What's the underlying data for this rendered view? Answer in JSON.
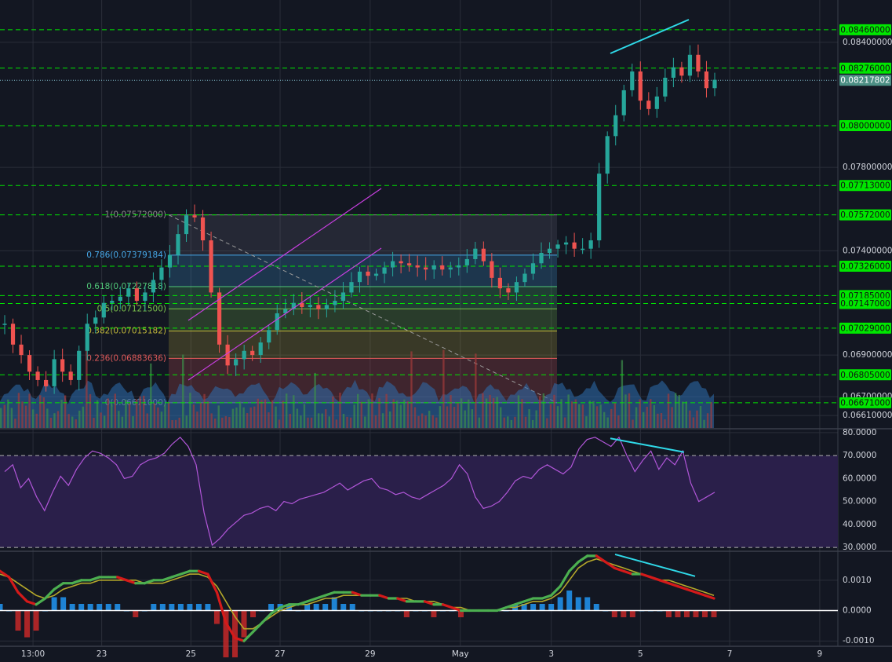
{
  "chart_data": [
    {
      "type": "candlestick",
      "panel": "price",
      "y_axis_ticks": [
        "0.08400000",
        "0.07800000",
        "0.07400000",
        "0.06900000",
        "0.06700000",
        "0.06610000"
      ],
      "ylim": [
        0.0655,
        0.0852
      ],
      "horizontal_levels": [
        {
          "value": 0.0846,
          "label": "0.08460000"
        },
        {
          "value": 0.08276,
          "label": "0.08276000"
        },
        {
          "value": 0.08,
          "label": "0.08000000"
        },
        {
          "value": 0.07713,
          "label": "0.07713000"
        },
        {
          "value": 0.07572,
          "label": "0.07572000"
        },
        {
          "value": 0.07326,
          "label": "0.07326000"
        },
        {
          "value": 0.07185,
          "label": "0.07185000"
        },
        {
          "value": 0.07147,
          "label": "0.07147000"
        },
        {
          "value": 0.07029,
          "label": "0.07029000"
        },
        {
          "value": 0.06805,
          "label": "0.06805000"
        },
        {
          "value": 0.06671,
          "label": "0.06671000"
        }
      ],
      "current_price": {
        "value": 0.08217802,
        "label": "0.08217802"
      },
      "fib_levels": [
        {
          "ratio": "1",
          "value": 0.07572,
          "label": "1(0.07572000)"
        },
        {
          "ratio": "0.786",
          "value": 0.07379184,
          "label": "0.786(0.07379184)"
        },
        {
          "ratio": "0.618",
          "value": 0.07227818,
          "label": "0.618(0.07227818)"
        },
        {
          "ratio": "0.5",
          "value": 0.071215,
          "label": "0.5(0.07121500)"
        },
        {
          "ratio": "0.382",
          "value": 0.07015182,
          "label": "0.382(0.07015182)"
        },
        {
          "ratio": "0.236",
          "value": 0.06883636,
          "label": "0.236(0.06883636)"
        },
        {
          "ratio": "0",
          "value": 0.06671,
          "label": "0(0.06671000)"
        }
      ],
      "price_path": [
        0.0705,
        0.0695,
        0.069,
        0.0682,
        0.0678,
        0.0675,
        0.0688,
        0.0682,
        0.0678,
        0.0692,
        0.0705,
        0.0708,
        0.0715,
        0.0716,
        0.0718,
        0.0722,
        0.0716,
        0.072,
        0.0726,
        0.0732,
        0.0738,
        0.0748,
        0.0757,
        0.0756,
        0.0745,
        0.072,
        0.0695,
        0.0685,
        0.0688,
        0.0692,
        0.069,
        0.0696,
        0.0702,
        0.071,
        0.0712,
        0.0715,
        0.0713,
        0.0714,
        0.0712,
        0.0714,
        0.0716,
        0.072,
        0.0725,
        0.073,
        0.0728,
        0.0729,
        0.0732,
        0.0735,
        0.0734,
        0.0733,
        0.0732,
        0.0731,
        0.0733,
        0.0731,
        0.0732,
        0.0733,
        0.0736,
        0.0741,
        0.0735,
        0.0727,
        0.0722,
        0.072,
        0.0725,
        0.0729,
        0.0734,
        0.0739,
        0.0741,
        0.0743,
        0.0744,
        0.0741,
        0.0741,
        0.0745,
        0.0777,
        0.0795,
        0.0805,
        0.0817,
        0.0826,
        0.0812,
        0.0808,
        0.0814,
        0.0823,
        0.0828,
        0.0824,
        0.0834,
        0.0826,
        0.0818,
        0.0822
      ],
      "volume_profile": "overlay"
    },
    {
      "type": "line",
      "panel": "rsi",
      "y_axis_ticks": [
        "80.0000",
        "70.0000",
        "60.0000",
        "50.0000",
        "40.0000",
        "30.0000"
      ],
      "ylim": [
        29,
        81
      ],
      "bands": [
        70,
        30
      ],
      "values": [
        63,
        66,
        56,
        60,
        52,
        46,
        54,
        61,
        57,
        64,
        69,
        72,
        71,
        69,
        66,
        60,
        61,
        66,
        68,
        69,
        71,
        75,
        78,
        74,
        66,
        45,
        31,
        34,
        38,
        41,
        44,
        45,
        47,
        48,
        46,
        50,
        49,
        51,
        52,
        53,
        54,
        56,
        58,
        55,
        57,
        59,
        60,
        56,
        55,
        53,
        54,
        52,
        51,
        53,
        55,
        57,
        60,
        66,
        62,
        52,
        47,
        48,
        50,
        54,
        59,
        61,
        60,
        64,
        66,
        64,
        62,
        65,
        73,
        77,
        78,
        76,
        74,
        78,
        70,
        63,
        68,
        72,
        64,
        69,
        66,
        72,
        58,
        50,
        52,
        54
      ]
    },
    {
      "type": "macd",
      "panel": "macd",
      "y_axis_ticks": [
        "0.0010",
        "0.0000",
        "-0.0010"
      ],
      "ylim": [
        -0.00115,
        0.0019
      ],
      "macd": [
        0.0013,
        0.0011,
        0.0006,
        0.0003,
        0.0002,
        0.0004,
        0.0007,
        0.0009,
        0.0009,
        0.001,
        0.001,
        0.0011,
        0.0011,
        0.0011,
        0.001,
        0.0009,
        0.0009,
        0.001,
        0.001,
        0.0011,
        0.0012,
        0.0013,
        0.0013,
        0.0012,
        0.0006,
        -0.0004,
        -0.0009,
        -0.001,
        -0.0007,
        -0.0004,
        -0.0001,
        0.0001,
        0.0002,
        0.0002,
        0.0003,
        0.0004,
        0.0005,
        0.0006,
        0.0006,
        0.0006,
        0.0005,
        0.0005,
        0.0005,
        0.0004,
        0.0004,
        0.0003,
        0.0003,
        0.0003,
        0.0002,
        0.0002,
        0.0001,
        0.0,
        0.0,
        0.0,
        0.0,
        0.0,
        0.0001,
        0.0002,
        0.0003,
        0.0004,
        0.0004,
        0.0005,
        0.0008,
        0.0013,
        0.0016,
        0.0018,
        0.0018,
        0.0016,
        0.0014,
        0.0013,
        0.0012,
        0.0012,
        0.0011,
        0.001,
        0.0009,
        0.0008,
        0.0007,
        0.0006,
        0.0005,
        0.0004
      ],
      "signal": [
        0.0012,
        0.0011,
        0.0009,
        0.0007,
        0.0005,
        0.0004,
        0.0005,
        0.0007,
        0.0008,
        0.0009,
        0.0009,
        0.001,
        0.001,
        0.001,
        0.001,
        0.001,
        0.0009,
        0.0009,
        0.0009,
        0.001,
        0.0011,
        0.0012,
        0.0012,
        0.0011,
        0.0008,
        0.0003,
        -0.0002,
        -0.0006,
        -0.0006,
        -0.0004,
        -0.0002,
        0.0,
        0.0001,
        0.0002,
        0.0002,
        0.0003,
        0.0004,
        0.0004,
        0.0005,
        0.0005,
        0.0005,
        0.0005,
        0.0005,
        0.0004,
        0.0004,
        0.0004,
        0.0003,
        0.0003,
        0.0003,
        0.0002,
        0.0001,
        0.0001,
        0.0,
        0.0,
        0.0,
        0.0,
        0.0001,
        0.0001,
        0.0002,
        0.0003,
        0.0003,
        0.0004,
        0.0006,
        0.001,
        0.0014,
        0.0016,
        0.0017,
        0.0016,
        0.0015,
        0.0014,
        0.0013,
        0.0012,
        0.0011,
        0.001,
        0.001,
        0.0009,
        0.0008,
        0.0007,
        0.0006,
        0.0005
      ]
    }
  ],
  "x_axis": {
    "ticks": [
      {
        "label": "13:00",
        "pos": 0.037
      },
      {
        "label": "23",
        "pos": 0.114
      },
      {
        "label": "25",
        "pos": 0.214
      },
      {
        "label": "27",
        "pos": 0.314
      },
      {
        "label": "29",
        "pos": 0.415
      },
      {
        "label": "May",
        "pos": 0.516
      },
      {
        "label": "3",
        "pos": 0.618
      },
      {
        "label": "5",
        "pos": 0.718
      },
      {
        "label": "7",
        "pos": 0.818
      },
      {
        "label": "9",
        "pos": 0.919
      }
    ]
  },
  "colors": {
    "background": "#131722",
    "grid": "#2a2e39",
    "up": "#26a69a",
    "down": "#ef5350",
    "level_line": "#00e600",
    "level_label_bg": "#00e600",
    "current_price_bg": "#4c8f84",
    "channel": "#c73fe0",
    "divergence": "#2fd9e8",
    "rsi_line": "#b156d8",
    "rsi_band_fill": "#2a1f4a",
    "macd_line": "#4caf50",
    "macd_down": "#d41a1a",
    "signal_line": "#b5a82a",
    "hist_pos": "#2196f3",
    "hist_neg": "#c62828",
    "fib_786": "#46a8e8",
    "fib_618": "#50c878",
    "fib_5": "#7bc24c",
    "fib_382": "#c2b83a",
    "fib_236": "#e05a5a",
    "fib_0": "#8a8a8a"
  }
}
